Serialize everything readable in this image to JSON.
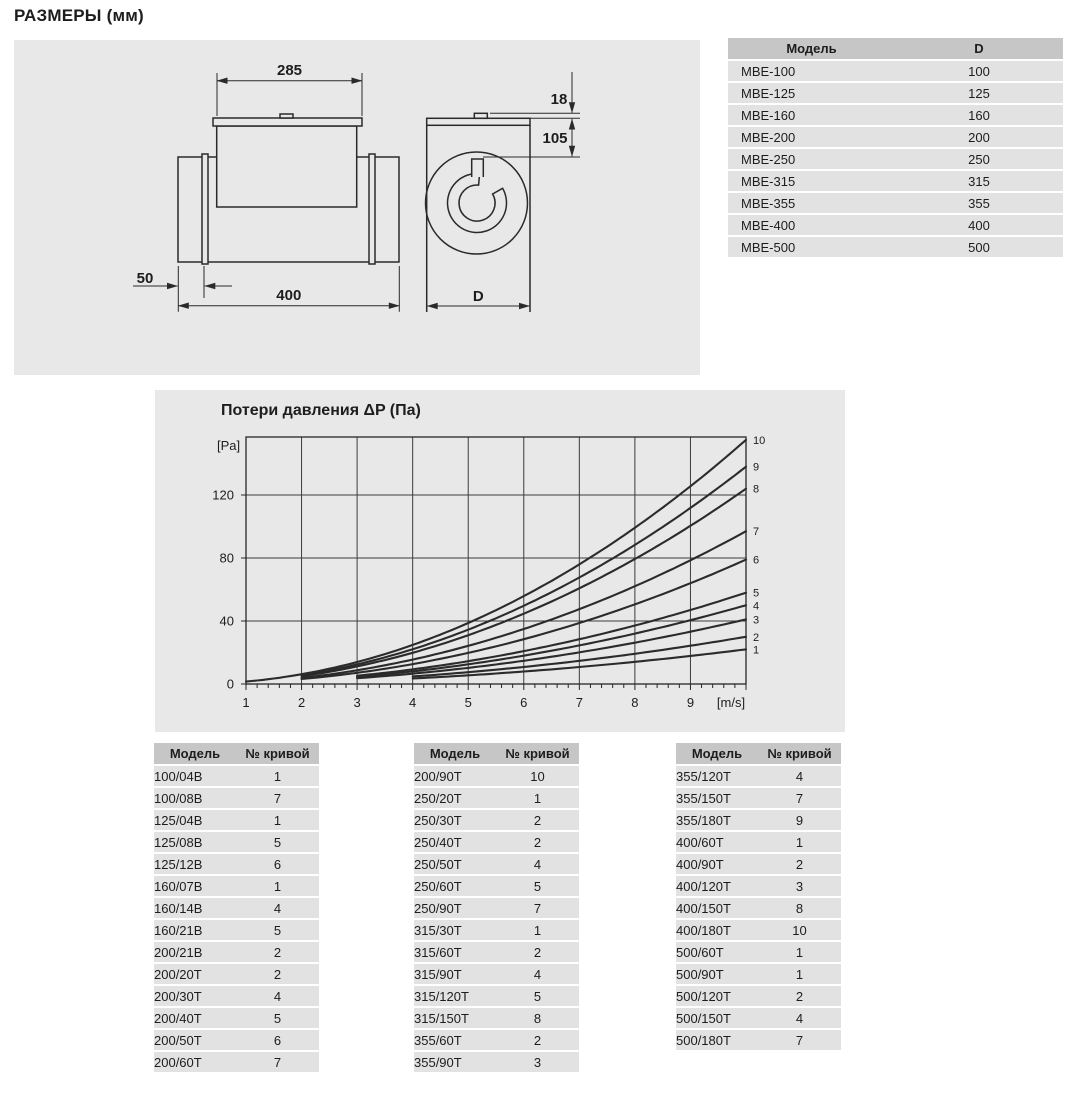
{
  "page": {
    "heading": "РАЗМЕРЫ (мм)"
  },
  "colors": {
    "panel_bg": "#e8e8e8",
    "table_header_bg": "#c6c6c6",
    "table_row_bg": "#e2e2e2",
    "text": "#1d1d1b",
    "line": "#2a2a2a"
  },
  "drawing": {
    "side_view": {
      "dim_top_width": "285",
      "dim_length": "400",
      "dim_flange_offset": "50"
    },
    "front_view": {
      "dim_lid_height": "18",
      "dim_box_height": "105",
      "dim_diameter": "D"
    }
  },
  "model_table": {
    "headers": [
      "Модель",
      "D"
    ],
    "rows": [
      [
        "MBE-100",
        "100"
      ],
      [
        "MBE-125",
        "125"
      ],
      [
        "MBE-160",
        "160"
      ],
      [
        "MBE-200",
        "200"
      ],
      [
        "MBE-250",
        "250"
      ],
      [
        "MBE-315",
        "315"
      ],
      [
        "MBE-355",
        "355"
      ],
      [
        "MBE-400",
        "400"
      ],
      [
        "MBE-500",
        "500"
      ]
    ]
  },
  "chart_data": {
    "type": "line",
    "title": "Потери давления ΔP (Па)",
    "model": "dP = k * v^2 (Pa), v in m/s",
    "legend_position": "right-edge curve numbers",
    "grid": true,
    "x_axis": {
      "unit": "[m/s]",
      "min": 1,
      "max": 10,
      "ticks": [
        1,
        2,
        3,
        4,
        5,
        6,
        7,
        8,
        9
      ],
      "minor_step": 0.2
    },
    "y_axis": {
      "unit": "[Pa]",
      "min": 0,
      "max": 157,
      "ticks": [
        0,
        40,
        80,
        120
      ]
    },
    "series": [
      {
        "name": "1",
        "k": 0.22,
        "v_start": 4,
        "points": [
          [
            4,
            3.5
          ],
          [
            5,
            5.5
          ],
          [
            6,
            7.9
          ],
          [
            7,
            10.8
          ],
          [
            8,
            14.1
          ],
          [
            9,
            17.8
          ],
          [
            10,
            22
          ]
        ]
      },
      {
        "name": "2",
        "k": 0.3,
        "v_start": 4,
        "points": [
          [
            4,
            4.8
          ],
          [
            5,
            7.5
          ],
          [
            6,
            10.8
          ],
          [
            7,
            14.7
          ],
          [
            8,
            19.2
          ],
          [
            9,
            24.3
          ],
          [
            10,
            30
          ]
        ]
      },
      {
        "name": "3",
        "k": 0.41,
        "v_start": 3,
        "points": [
          [
            3,
            3.7
          ],
          [
            4,
            6.6
          ],
          [
            5,
            10.3
          ],
          [
            6,
            14.8
          ],
          [
            7,
            20.1
          ],
          [
            8,
            26.2
          ],
          [
            9,
            33.2
          ],
          [
            10,
            41
          ]
        ]
      },
      {
        "name": "4",
        "k": 0.5,
        "v_start": 3,
        "points": [
          [
            3,
            4.5
          ],
          [
            4,
            8.0
          ],
          [
            5,
            12.5
          ],
          [
            6,
            18.0
          ],
          [
            7,
            24.5
          ],
          [
            8,
            32.0
          ],
          [
            9,
            40.5
          ],
          [
            10,
            50
          ]
        ]
      },
      {
        "name": "5",
        "k": 0.58,
        "v_start": 3,
        "points": [
          [
            3,
            5.2
          ],
          [
            4,
            9.3
          ],
          [
            5,
            14.5
          ],
          [
            6,
            20.9
          ],
          [
            7,
            28.4
          ],
          [
            8,
            37.1
          ],
          [
            9,
            47.0
          ],
          [
            10,
            58
          ]
        ]
      },
      {
        "name": "6",
        "k": 0.79,
        "v_start": 2,
        "points": [
          [
            2,
            3.2
          ],
          [
            3,
            7.1
          ],
          [
            4,
            12.6
          ],
          [
            5,
            19.8
          ],
          [
            6,
            28.4
          ],
          [
            7,
            38.7
          ],
          [
            8,
            50.6
          ],
          [
            9,
            64.0
          ],
          [
            10,
            79
          ]
        ]
      },
      {
        "name": "7",
        "k": 0.97,
        "v_start": 2,
        "points": [
          [
            2,
            3.9
          ],
          [
            3,
            8.7
          ],
          [
            4,
            15.5
          ],
          [
            5,
            24.3
          ],
          [
            6,
            34.9
          ],
          [
            7,
            47.5
          ],
          [
            8,
            62.1
          ],
          [
            9,
            78.6
          ],
          [
            10,
            97
          ]
        ]
      },
      {
        "name": "8",
        "k": 1.24,
        "v_start": 2,
        "points": [
          [
            2,
            5.0
          ],
          [
            3,
            11.2
          ],
          [
            4,
            19.8
          ],
          [
            5,
            31.0
          ],
          [
            6,
            44.6
          ],
          [
            7,
            60.8
          ],
          [
            8,
            79.4
          ],
          [
            9,
            100.4
          ],
          [
            10,
            124
          ]
        ]
      },
      {
        "name": "9",
        "k": 1.38,
        "v_start": 2,
        "points": [
          [
            2,
            5.5
          ],
          [
            3,
            12.4
          ],
          [
            4,
            22.1
          ],
          [
            5,
            34.5
          ],
          [
            6,
            49.7
          ],
          [
            7,
            67.6
          ],
          [
            8,
            88.3
          ],
          [
            9,
            111.8
          ],
          [
            10,
            138
          ]
        ]
      },
      {
        "name": "10",
        "k": 1.55,
        "v_start": 1,
        "points": [
          [
            1,
            1.6
          ],
          [
            2,
            6.2
          ],
          [
            3,
            14.0
          ],
          [
            4,
            24.8
          ],
          [
            5,
            38.8
          ],
          [
            6,
            55.8
          ],
          [
            7,
            76.0
          ],
          [
            8,
            99.2
          ],
          [
            9,
            125.6
          ],
          [
            10,
            155
          ]
        ]
      }
    ]
  },
  "curve_tables": {
    "headers": [
      "Модель",
      "№ кривой"
    ],
    "table1_rows": [
      [
        "100/04B",
        "1"
      ],
      [
        "100/08B",
        "7"
      ],
      [
        "125/04B",
        "1"
      ],
      [
        "125/08B",
        "5"
      ],
      [
        "125/12B",
        "6"
      ],
      [
        "160/07B",
        "1"
      ],
      [
        "160/14B",
        "4"
      ],
      [
        "160/21B",
        "5"
      ],
      [
        "200/21B",
        "2"
      ],
      [
        "200/20T",
        "2"
      ],
      [
        "200/30T",
        "4"
      ],
      [
        "200/40T",
        "5"
      ],
      [
        "200/50T",
        "6"
      ],
      [
        "200/60T",
        "7"
      ]
    ],
    "table2_rows": [
      [
        "200/90T",
        "10"
      ],
      [
        "250/20T",
        "1"
      ],
      [
        "250/30T",
        "2"
      ],
      [
        "250/40T",
        "2"
      ],
      [
        "250/50T",
        "4"
      ],
      [
        "250/60T",
        "5"
      ],
      [
        "250/90T",
        "7"
      ],
      [
        "315/30T",
        "1"
      ],
      [
        "315/60T",
        "2"
      ],
      [
        "315/90T",
        "4"
      ],
      [
        "315/120T",
        "5"
      ],
      [
        "315/150T",
        "8"
      ],
      [
        "355/60T",
        "2"
      ],
      [
        "355/90T",
        "3"
      ]
    ],
    "table3_rows": [
      [
        "355/120T",
        "4"
      ],
      [
        "355/150T",
        "7"
      ],
      [
        "355/180T",
        "9"
      ],
      [
        "400/60T",
        "1"
      ],
      [
        "400/90T",
        "2"
      ],
      [
        "400/120T",
        "3"
      ],
      [
        "400/150T",
        "8"
      ],
      [
        "400/180T",
        "10"
      ],
      [
        "500/60T",
        "1"
      ],
      [
        "500/90T",
        "1"
      ],
      [
        "500/120T",
        "2"
      ],
      [
        "500/150T",
        "4"
      ],
      [
        "500/180T",
        "7"
      ]
    ]
  }
}
